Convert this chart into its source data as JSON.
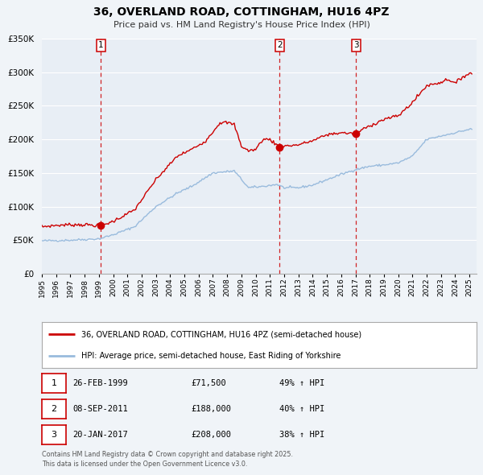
{
  "title": "36, OVERLAND ROAD, COTTINGHAM, HU16 4PZ",
  "subtitle": "Price paid vs. HM Land Registry's House Price Index (HPI)",
  "bg_color": "#f0f4f8",
  "plot_bg_color": "#e8eef5",
  "grid_color": "#d0d8e0",
  "red_line_color": "#cc0000",
  "blue_line_color": "#99bbdd",
  "transaction_color": "#cc0000",
  "vline_color": "#cc0000",
  "ylim": [
    0,
    350000
  ],
  "yticks": [
    0,
    50000,
    100000,
    150000,
    200000,
    250000,
    300000,
    350000
  ],
  "ytick_labels": [
    "£0",
    "£50K",
    "£100K",
    "£150K",
    "£200K",
    "£250K",
    "£300K",
    "£350K"
  ],
  "transactions": [
    {
      "num": 1,
      "date_num": 1999.147,
      "price": 71500,
      "label": "26-FEB-1999",
      "price_str": "£71,500",
      "hpi_str": "49% ↑ HPI"
    },
    {
      "num": 2,
      "date_num": 2011.685,
      "price": 188000,
      "label": "08-SEP-2011",
      "price_str": "£188,000",
      "hpi_str": "40% ↑ HPI"
    },
    {
      "num": 3,
      "date_num": 2017.055,
      "price": 208000,
      "label": "20-JAN-2017",
      "price_str": "£208,000",
      "hpi_str": "38% ↑ HPI"
    }
  ],
  "legend_line1": "36, OVERLAND ROAD, COTTINGHAM, HU16 4PZ (semi-detached house)",
  "legend_line2": "HPI: Average price, semi-detached house, East Riding of Yorkshire",
  "footer": "Contains HM Land Registry data © Crown copyright and database right 2025.\nThis data is licensed under the Open Government Licence v3.0."
}
